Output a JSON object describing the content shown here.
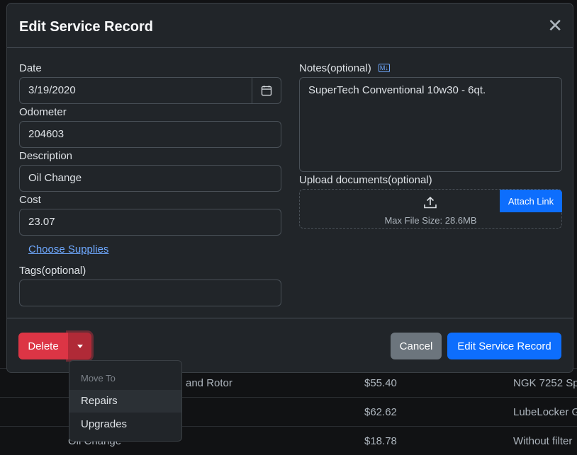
{
  "background_rows": [
    {
      "desc": "and Rotor",
      "cost": "$55.40",
      "notes": "NGK 7252 Sp"
    },
    {
      "desc": "",
      "cost": "$62.62",
      "notes": "LubeLocker G"
    },
    {
      "desc": "Oil Change",
      "cost": "$18.78",
      "notes": "Without filter"
    }
  ],
  "modal": {
    "title": "Edit Service Record",
    "close_icon": "x-icon",
    "date_label": "Date",
    "date_value": "3/19/2020",
    "odometer_label": "Odometer",
    "odometer_value": "204603",
    "description_label": "Description",
    "description_value": "Oil Change",
    "cost_label": "Cost",
    "cost_value": "23.07",
    "choose_supplies": "Choose Supplies",
    "tags_label": "Tags(optional)",
    "tags_value": "",
    "notes_label": "Notes(optional)",
    "markdown_badge": "M↓",
    "notes_value": "SuperTech Conventional 10w30 - 6qt.",
    "upload_label": "Upload documents(optional)",
    "attach_link": "Attach Link",
    "max_file_size": "Max File Size: 28.6MB",
    "delete": "Delete",
    "cancel": "Cancel",
    "submit": "Edit Service Record"
  },
  "dropdown": {
    "header": "Move To",
    "items": [
      "Repairs",
      "Upgrades"
    ]
  },
  "colors": {
    "danger": "#dc3545",
    "primary": "#0d6efd",
    "secondary": "#6c757d",
    "link": "#6ea8fe"
  }
}
